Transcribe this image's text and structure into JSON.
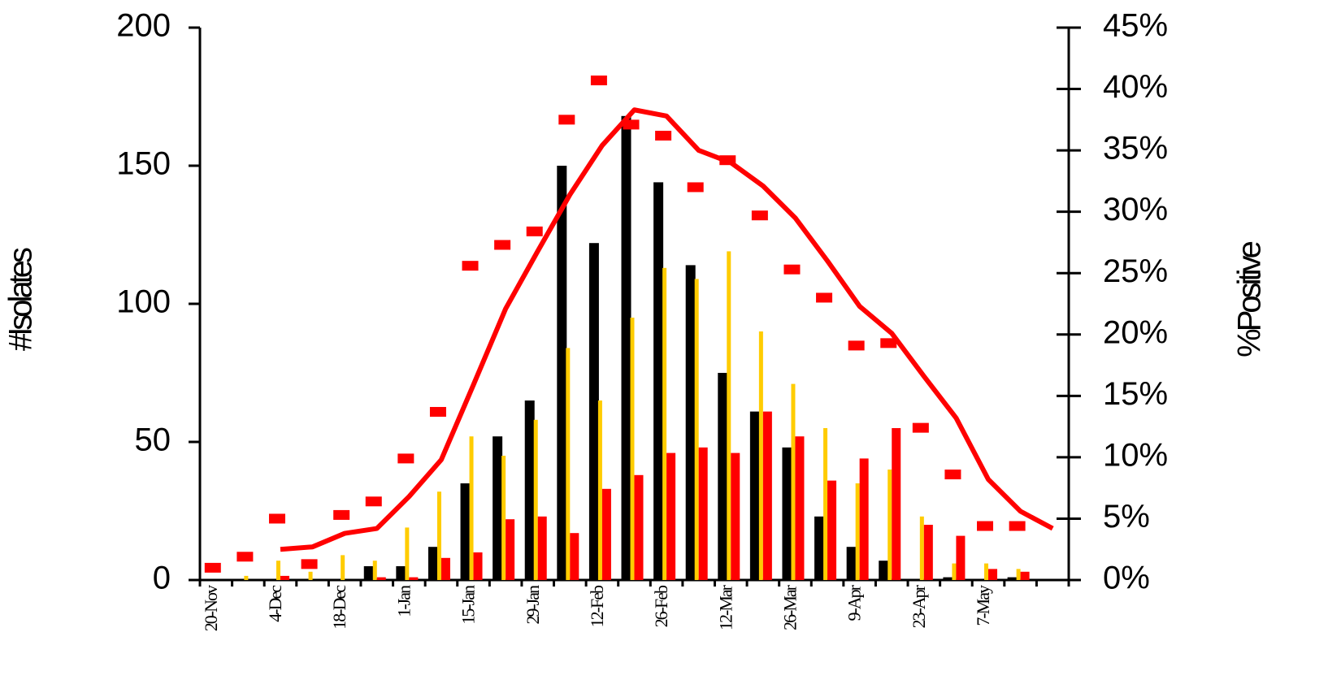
{
  "chart_data": {
    "type": "bar",
    "y_label": "#Isolates",
    "y2_label": "%Positive",
    "categories": [
      "20-Nov",
      null,
      "4-Dec",
      null,
      "18-Dec",
      null,
      "1-Jan",
      null,
      "15-Jan",
      null,
      "29-Jan",
      null,
      "12-Feb",
      null,
      "26-Feb",
      null,
      "12-Mar",
      null,
      "26-Mar",
      null,
      "9-Apr",
      null,
      "23-Apr",
      null,
      "7-May",
      null,
      null
    ],
    "ylim": [
      0,
      200
    ],
    "yticks": [
      0,
      50,
      100,
      150,
      200
    ],
    "y2lim": [
      0,
      45
    ],
    "y2ticks": [
      {
        "value": 0,
        "label": "0%"
      },
      {
        "value": 5,
        "label": "5%"
      },
      {
        "value": 10,
        "label": "10%"
      },
      {
        "value": 15,
        "label": "15%"
      },
      {
        "value": 20,
        "label": "20%"
      },
      {
        "value": 25,
        "label": "25%"
      },
      {
        "value": 30,
        "label": "30%"
      },
      {
        "value": 35,
        "label": "35%"
      },
      {
        "value": 40,
        "label": "40%"
      },
      {
        "value": 45,
        "label": "45%"
      }
    ],
    "grid": false,
    "series": [
      {
        "type": "bar",
        "color": "#000000",
        "values": [
          0,
          0,
          0,
          0,
          0,
          5,
          5,
          12,
          35,
          52,
          65,
          150,
          122,
          168,
          144,
          114,
          75,
          61,
          48,
          23,
          12,
          7,
          0,
          1,
          0,
          1,
          0
        ]
      },
      {
        "type": "bar",
        "color": "#ffcc00",
        "values": [
          0,
          1.5,
          7,
          3,
          9,
          7,
          19,
          32,
          52,
          45,
          58,
          84,
          65,
          95,
          113,
          109,
          119,
          90,
          71,
          55,
          35,
          40,
          23,
          6,
          6,
          4,
          0
        ]
      },
      {
        "type": "bar",
        "color": "#ff0000",
        "values": [
          0,
          0,
          1.5,
          0,
          0,
          1,
          1,
          8,
          10,
          22,
          23,
          17,
          33,
          38,
          46,
          48,
          46,
          61,
          52,
          36,
          44,
          55,
          20,
          16,
          4,
          3,
          0
        ]
      },
      {
        "type": "dash",
        "axis": "y2",
        "color": "#ff0000",
        "values": [
          1.0,
          1.9,
          5.0,
          1.3,
          5.3,
          6.4,
          9.9,
          13.7,
          25.6,
          27.3,
          28.4,
          37.5,
          40.7,
          37.1,
          36.2,
          32.0,
          34.2,
          29.7,
          25.3,
          23.0,
          19.1,
          19.3,
          12.4,
          8.6,
          4.4,
          4.4,
          null
        ]
      },
      {
        "type": "line",
        "axis": "y2",
        "color": "#ff0000",
        "values": [
          null,
          null,
          2.5,
          2.7,
          3.8,
          4.2,
          6.8,
          9.8,
          15.9,
          22.1,
          26.8,
          31.4,
          35.4,
          38.3,
          37.8,
          35.0,
          34.0,
          32.1,
          29.5,
          26.0,
          22.3,
          20.1,
          16.6,
          13.2,
          8.2,
          5.6,
          4.2
        ]
      }
    ]
  }
}
